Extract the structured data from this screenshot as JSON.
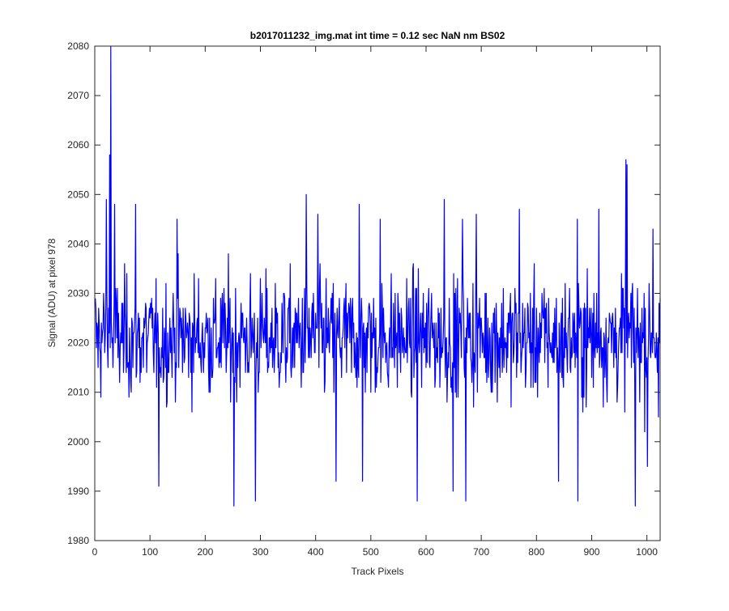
{
  "chart_data": {
    "type": "line",
    "title": "b2017011232_img.mat int time = 0.12 sec  NaN nm BS02",
    "xlabel": "Track Pixels",
    "ylabel": "Signal (ADU) at pixel 978",
    "xlim": [
      0,
      1024
    ],
    "ylim": [
      1980,
      2080
    ],
    "xticks": [
      "0",
      "100",
      "200",
      "300",
      "400",
      "500",
      "600",
      "700",
      "800",
      "900",
      "1000"
    ],
    "yticks": [
      "1980",
      "1990",
      "2000",
      "2010",
      "2020",
      "2030",
      "2040",
      "2050",
      "2060",
      "2070",
      "2080"
    ],
    "grid": false,
    "legend": "none",
    "series": [
      {
        "color": "#0000ff",
        "n_points": 1024,
        "noise_mean": 2021,
        "spikes": [
          [
            28,
            2080
          ],
          [
            26,
            2058
          ],
          [
            20,
            2049
          ],
          [
            35,
            2048
          ],
          [
            73,
            2048
          ],
          [
            148,
            2045
          ],
          [
            382,
            2050
          ],
          [
            403,
            2046
          ],
          [
            478,
            2048
          ],
          [
            516,
            2045
          ],
          [
            632,
            2049
          ],
          [
            665,
            2045
          ],
          [
            690,
            2046
          ],
          [
            768,
            2047
          ],
          [
            873,
            2045
          ],
          [
            912,
            2047
          ],
          [
            961,
            2057
          ],
          [
            963,
            2056
          ],
          [
            1010,
            2043
          ]
        ],
        "dips": [
          [
            115,
            1991
          ],
          [
            251,
            1987
          ],
          [
            290,
            1988
          ],
          [
            436,
            1992
          ],
          [
            484,
            1992
          ],
          [
            583,
            1988
          ],
          [
            648,
            1990
          ],
          [
            671,
            1988
          ],
          [
            839,
            1992
          ],
          [
            874,
            1988
          ],
          [
            978,
            1987
          ],
          [
            1000,
            1995
          ],
          [
            1020,
            2005
          ]
        ]
      }
    ]
  }
}
